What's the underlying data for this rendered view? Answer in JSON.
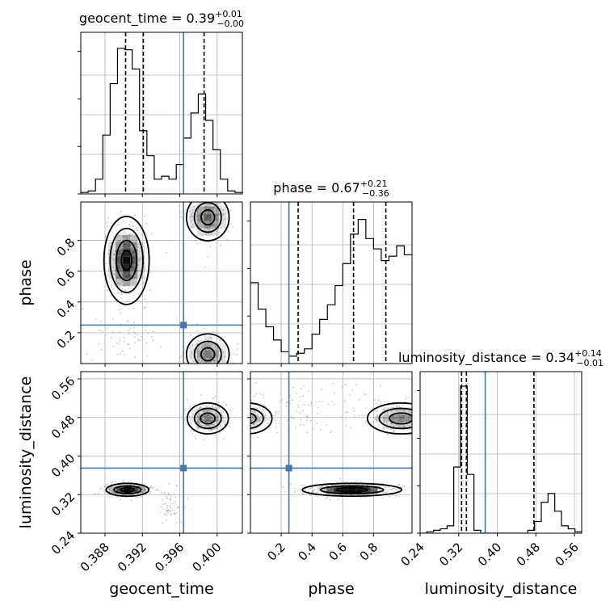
{
  "chart_data": {
    "type": "corner",
    "parameters": [
      "geocent_time",
      "phase",
      "luminosity_distance"
    ],
    "truths": {
      "geocent_time": 0.3964,
      "phase": 0.25,
      "luminosity_distance": 0.375
    },
    "ranges": {
      "geocent_time": [
        0.3854,
        0.4027
      ],
      "phase": [
        0.0,
        1.05
      ],
      "luminosity_distance": [
        0.24,
        0.575
      ]
    },
    "ticks": {
      "geocent_time": {
        "values": [
          0.388,
          0.392,
          0.396,
          0.4
        ],
        "labels": [
          "0.388",
          "0.392",
          "0.396",
          "0.400"
        ]
      },
      "phase": {
        "values": [
          0.2,
          0.4,
          0.6,
          0.8
        ],
        "labels": [
          "0.2",
          "0.4",
          "0.6",
          "0.8"
        ]
      },
      "luminosity_distance": {
        "values": [
          0.24,
          0.32,
          0.4,
          0.48,
          0.56
        ],
        "labels": [
          "0.24",
          "0.32",
          "0.40",
          "0.48",
          "0.56"
        ]
      }
    },
    "titles": {
      "geocent_time": {
        "text": "geocent_time = 0.39",
        "plus": "+0.01",
        "minus": "−0.00"
      },
      "phase": {
        "text": "phase = 0.67",
        "plus": "+0.21",
        "minus": "−0.36"
      },
      "luminosity_distance": {
        "text": "luminosity_distance = 0.34",
        "plus": "+0.14",
        "minus": "−0.01"
      }
    },
    "quantiles": {
      "geocent_time": [
        0.3902,
        0.3921,
        0.3986
      ],
      "phase": [
        0.31,
        0.67,
        0.88
      ],
      "luminosity_distance": [
        0.326,
        0.336,
        0.476
      ]
    },
    "histograms": {
      "geocent_time": [
        0.01,
        0.02,
        0.1,
        0.4,
        0.75,
        0.99,
        0.98,
        0.85,
        0.43,
        0.26,
        0.1,
        0.12,
        0.1,
        0.2,
        0.38,
        0.55,
        0.68,
        0.5,
        0.3,
        0.1,
        0.02,
        0.01
      ],
      "phase": [
        0.55,
        0.37,
        0.25,
        0.16,
        0.08,
        0.05,
        0.07,
        0.1,
        0.2,
        0.3,
        0.4,
        0.53,
        0.68,
        0.88,
        0.98,
        0.85,
        0.78,
        0.7,
        0.73,
        0.8,
        0.74
      ],
      "luminosity_distance": [
        0,
        0.01,
        0.02,
        0.03,
        0.05,
        0.45,
        1.0,
        0.4,
        0.02,
        0,
        0,
        0,
        0,
        0,
        0,
        0,
        0.02,
        0.08,
        0.21,
        0.27,
        0.15,
        0.05,
        0.03,
        0.01
      ]
    },
    "grid": true,
    "truth_color": "#4477aa"
  }
}
